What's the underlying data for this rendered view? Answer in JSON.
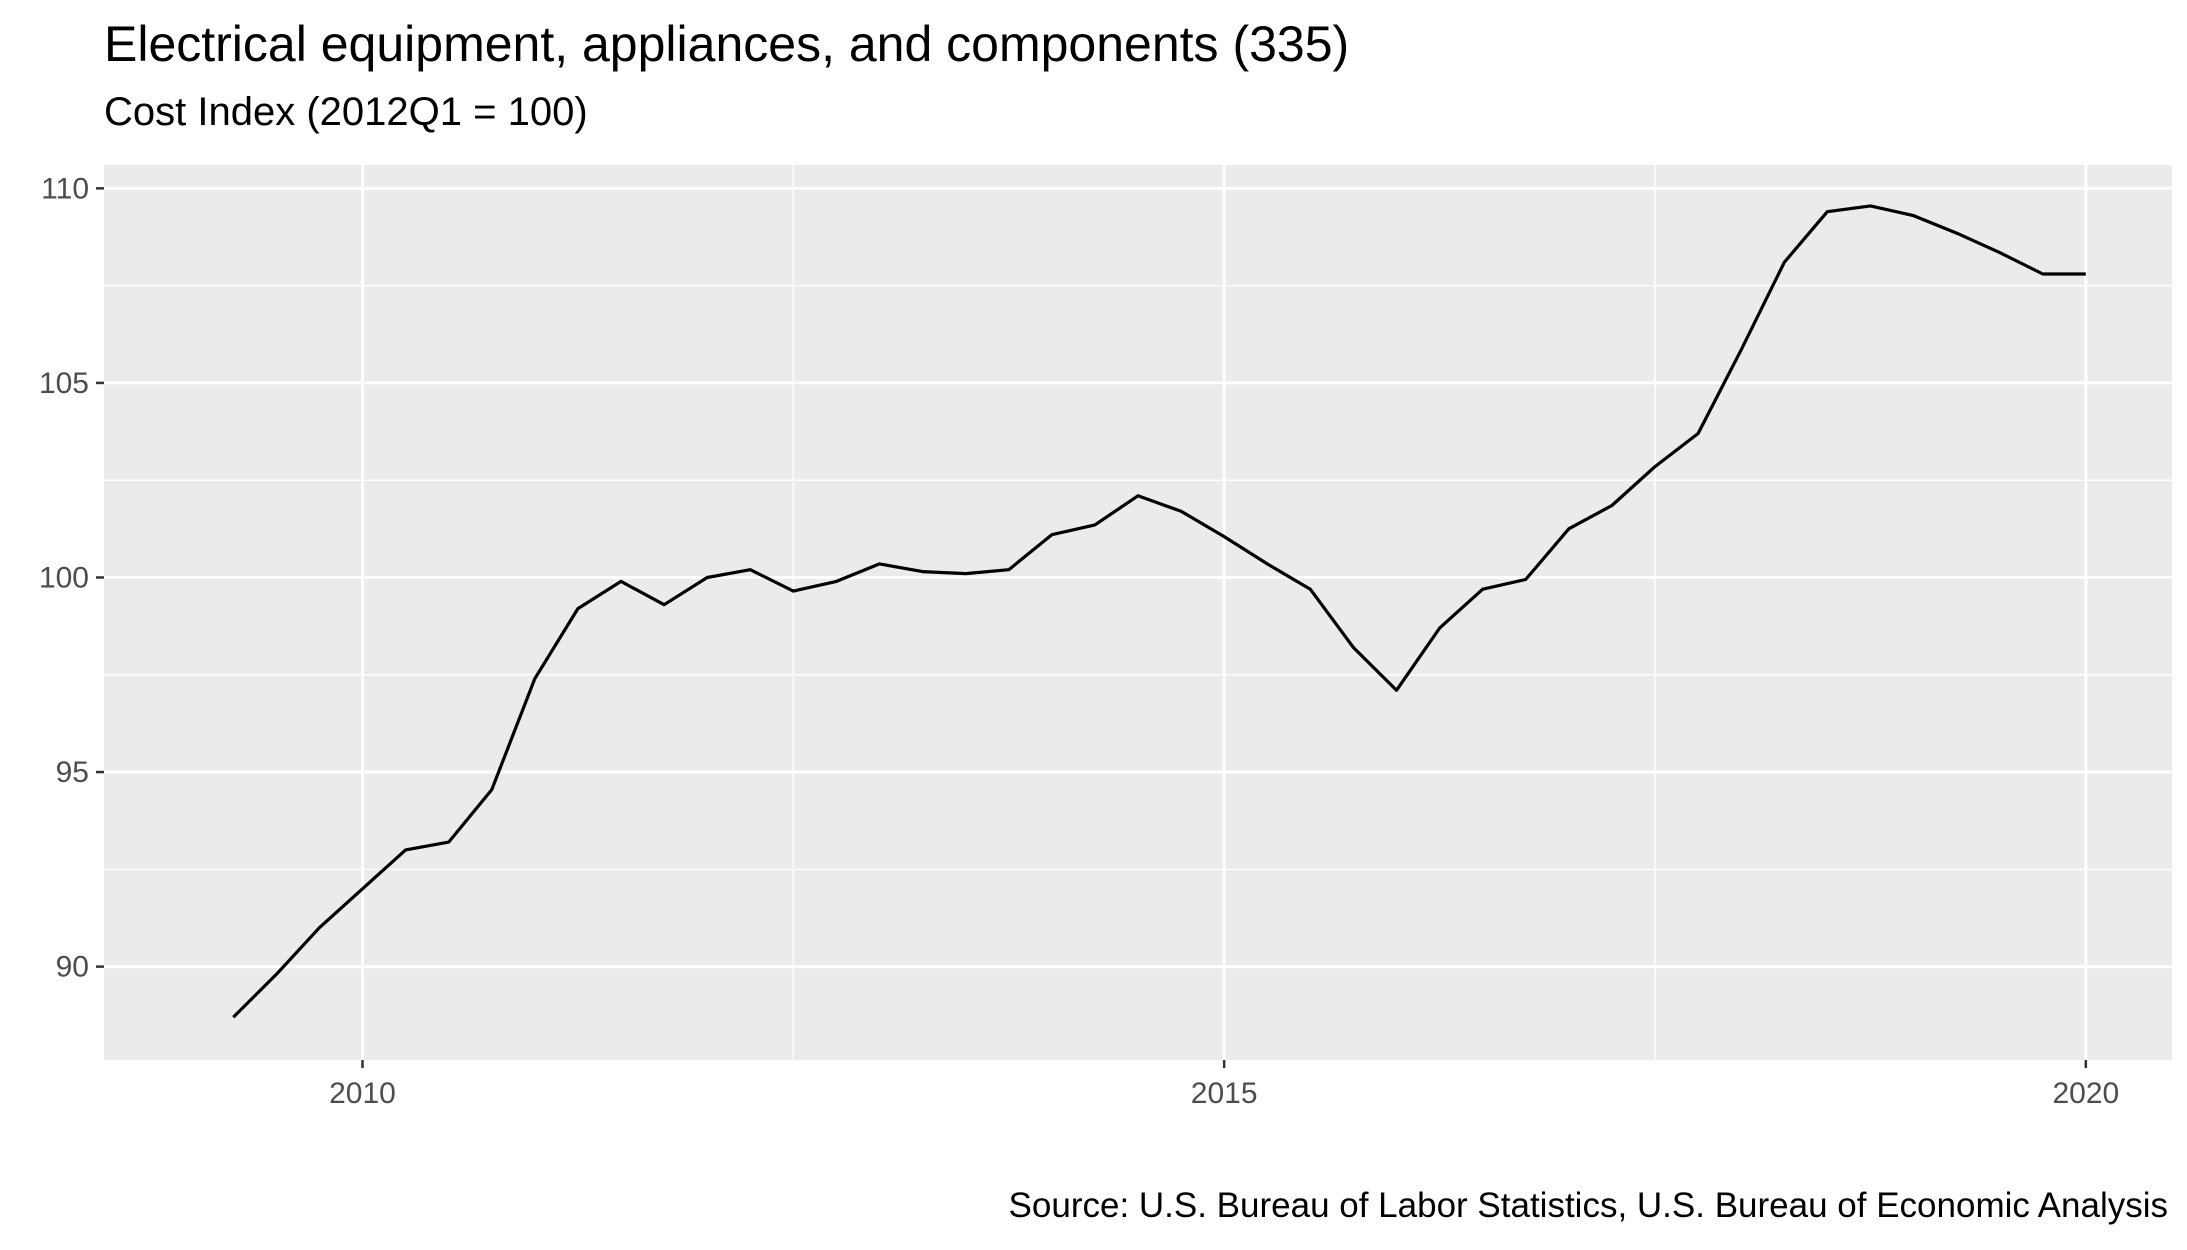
{
  "title": "Electrical equipment, appliances, and components (335)",
  "subtitle": "Cost Index (2012Q1 = 100)",
  "caption": "Source: U.S. Bureau of Labor Statistics, U.S. Bureau of Economic Analysis",
  "chart_data": {
    "type": "line",
    "xlabel": "",
    "ylabel": "",
    "xlim": [
      2008.5,
      2020.5
    ],
    "ylim": [
      87.6,
      110.6
    ],
    "x_ticks": [
      2010,
      2015,
      2020
    ],
    "y_ticks": [
      90,
      95,
      100,
      105,
      110
    ],
    "grid": true,
    "legend": "none",
    "colors": {
      "line": "#000000",
      "panel": "#ebebeb",
      "grid": "#ffffff"
    },
    "series": [
      {
        "x": [
          2009.25,
          2009.5,
          2009.75,
          2010.0,
          2010.25,
          2010.5,
          2010.75,
          2011.0,
          2011.25,
          2011.5,
          2011.75,
          2012.0,
          2012.25,
          2012.5,
          2012.75,
          2013.0,
          2013.25,
          2013.5,
          2013.75,
          2014.0,
          2014.25,
          2014.5,
          2014.75,
          2015.0,
          2015.25,
          2015.5,
          2015.75,
          2016.0,
          2016.25,
          2016.5,
          2016.75,
          2017.0,
          2017.25,
          2017.5,
          2017.75,
          2018.0,
          2018.25,
          2018.5,
          2018.75,
          2019.0,
          2019.25,
          2019.5,
          2019.75,
          2020.0
        ],
        "values": [
          88.7,
          89.8,
          91.0,
          92.0,
          93.0,
          93.2,
          94.55,
          97.4,
          99.2,
          99.9,
          99.3,
          100.0,
          100.2,
          99.65,
          99.9,
          100.35,
          100.15,
          100.1,
          100.2,
          101.1,
          101.35,
          102.1,
          101.7,
          101.05,
          100.35,
          99.7,
          98.2,
          97.1,
          98.7,
          99.7,
          99.95,
          101.25,
          101.85,
          102.85,
          103.7,
          105.85,
          108.1,
          109.4,
          109.55,
          109.3,
          108.85,
          108.35,
          107.8,
          107.8
        ]
      }
    ]
  }
}
